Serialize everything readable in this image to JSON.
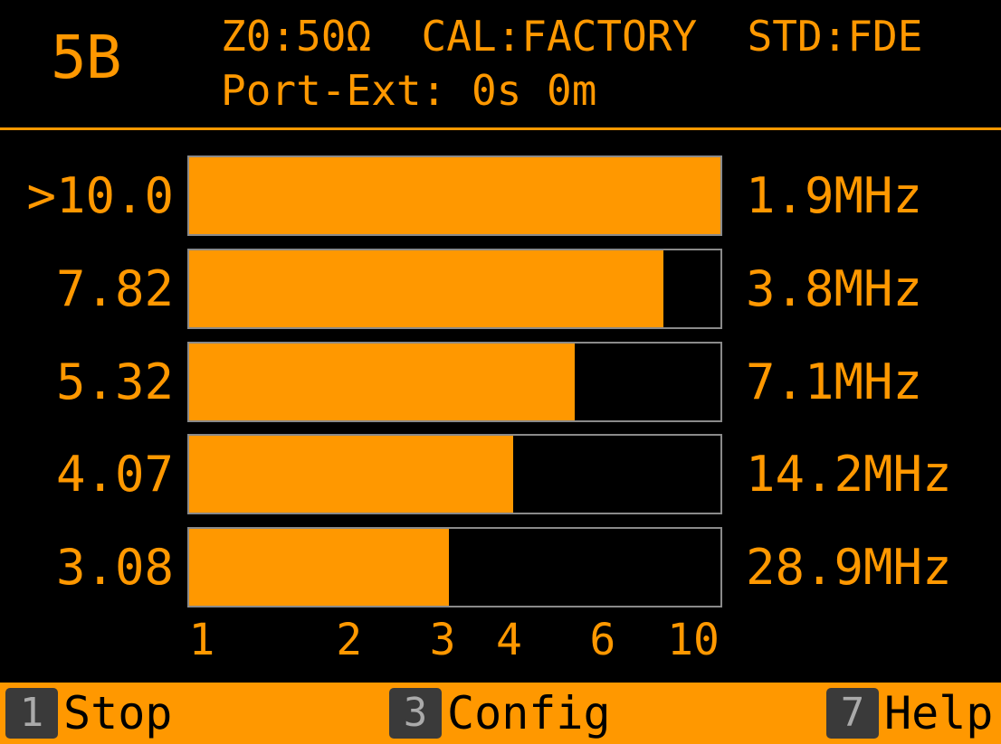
{
  "header": {
    "mode": "5B",
    "line1": "Z0:50Ω  CAL:FACTORY  STD:FDE",
    "line2": "Port-Ext: 0s 0m"
  },
  "bands": [
    {
      "swr": ">10.0",
      "swr_value": 10.0,
      "freq": "1.9MHz"
    },
    {
      "swr": "7.82",
      "swr_value": 7.82,
      "freq": "3.8MHz"
    },
    {
      "swr": "5.32",
      "swr_value": 5.32,
      "freq": "7.1MHz"
    },
    {
      "swr": "4.07",
      "swr_value": 4.07,
      "freq": "14.2MHz"
    },
    {
      "swr": "3.08",
      "swr_value": 3.08,
      "freq": "28.9MHz"
    }
  ],
  "scale": {
    "type": "log",
    "min": 1,
    "max": 10,
    "ticks": [
      "1",
      "2",
      "3",
      "4",
      "6",
      "10"
    ]
  },
  "footer": {
    "keys": [
      {
        "key": "1",
        "label": "Stop"
      },
      {
        "key": "3",
        "label": "Config"
      },
      {
        "key": "7",
        "label": "Help"
      }
    ]
  },
  "colors": {
    "accent": "#ff9800",
    "background": "#000000",
    "bar_border": "#8a8a8a",
    "keycap": "#3a3a3a"
  }
}
